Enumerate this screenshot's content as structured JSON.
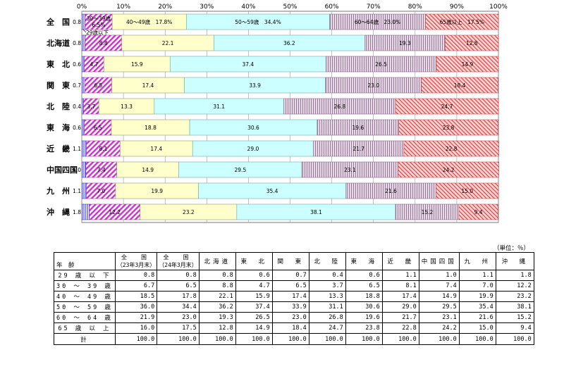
{
  "chart_data": {
    "type": "bar",
    "orientation": "horizontal-stacked-100",
    "x_ticks": [
      "0%",
      "10%",
      "20%",
      "30%",
      "40%",
      "50%",
      "60%",
      "70%",
      "80%",
      "90%",
      "100%"
    ],
    "xlim": [
      0,
      100
    ],
    "grid": true,
    "categories": [
      "全　国",
      "北海道",
      "東　北",
      "関　東",
      "北　陸",
      "東　海",
      "近　畿",
      "中国四国",
      "九　州",
      "沖　縄"
    ],
    "series": [
      {
        "name": "29歳以下",
        "color": "#7b7bff",
        "pattern": "vstripe",
        "values": [
          0.8,
          0.8,
          0.6,
          0.7,
          0.4,
          0.6,
          1.1,
          1.0,
          1.1,
          1.8
        ]
      },
      {
        "name": "30～39歳",
        "color": "#cc33cc",
        "pattern": "diag",
        "values": [
          6.5,
          8.8,
          4.7,
          6.5,
          3.7,
          6.5,
          8.1,
          7.4,
          7.0,
          12.2
        ]
      },
      {
        "name": "40～49歳",
        "color": "#ffffcc",
        "pattern": "solid",
        "values": [
          17.8,
          22.1,
          15.9,
          17.4,
          13.3,
          18.8,
          17.4,
          14.9,
          19.9,
          23.2
        ]
      },
      {
        "name": "50～59歳",
        "color": "#ccffff",
        "pattern": "solid",
        "values": [
          34.4,
          36.2,
          37.4,
          33.9,
          31.1,
          30.6,
          29.0,
          29.5,
          35.4,
          38.1
        ]
      },
      {
        "name": "60～64歳",
        "color": "#d6c2d6",
        "pattern": "vlines",
        "values": [
          23.0,
          19.3,
          26.5,
          23.0,
          26.8,
          19.6,
          21.7,
          23.1,
          21.6,
          15.2
        ]
      },
      {
        "name": "65歳以上",
        "color": "#ffcccc",
        "pattern": "redhatch",
        "values": [
          17.5,
          12.8,
          14.9,
          18.4,
          24.7,
          23.8,
          22.8,
          24.2,
          15.0,
          9.4
        ]
      }
    ],
    "bar_labels": [
      [
        "0.8",
        "30～39歳\n6.5%",
        "40～49歳　17.8%",
        "50～59歳　34.4%",
        "60～64歳　23.0%",
        "65歳以上　17.5%"
      ],
      [
        "0.8",
        "8.8",
        "22.1",
        "36.2",
        "19.3",
        "12.8"
      ],
      [
        "0.6",
        "4.7",
        "15.9",
        "37.4",
        "26.5",
        "14.9"
      ],
      [
        "0.7",
        "6.5",
        "17.4",
        "33.9",
        "23.0",
        "18.4"
      ],
      [
        "0.4",
        "3.7",
        "13.3",
        "31.1",
        "26.8",
        "24.7"
      ],
      [
        "0.6",
        "6.5",
        "18.8",
        "30.6",
        "19.6",
        "23.8"
      ],
      [
        "1.1",
        "8.1",
        "17.4",
        "29.0",
        "21.7",
        "22.8"
      ],
      [
        "1.0",
        "7.4",
        "14.9",
        "29.5",
        "23.1",
        "24.2"
      ],
      [
        "1.1",
        "7.0",
        "19.9",
        "35.4",
        "21.6",
        "15.0"
      ],
      [
        "1.8",
        "12.2",
        "23.2",
        "38.1",
        "15.2",
        "9.4"
      ]
    ],
    "annotation": "29歳以下"
  },
  "table": {
    "unit": "（単位：％）",
    "corner_label": "年　齢",
    "headers": [
      {
        "line1": "全　国",
        "line2": "（23年3月末）"
      },
      {
        "line1": "全　国",
        "line2": "（24年3月末）"
      },
      {
        "line1": "北海道",
        "line2": ""
      },
      {
        "line1": "東　北",
        "line2": ""
      },
      {
        "line1": "関　東",
        "line2": ""
      },
      {
        "line1": "北　陸",
        "line2": ""
      },
      {
        "line1": "東　海",
        "line2": ""
      },
      {
        "line1": "近　畿",
        "line2": ""
      },
      {
        "line1": "中国四国",
        "line2": ""
      },
      {
        "line1": "九　州",
        "line2": ""
      },
      {
        "line1": "沖　縄",
        "line2": ""
      }
    ],
    "rows": [
      {
        "label": "29 歳 以 下",
        "values": [
          "0.8",
          "0.8",
          "0.8",
          "0.6",
          "0.7",
          "0.4",
          "0.6",
          "1.1",
          "1.0",
          "1.1",
          "1.8"
        ]
      },
      {
        "label": "30 ～ 39 歳",
        "values": [
          "6.7",
          "6.5",
          "8.8",
          "4.7",
          "6.5",
          "3.7",
          "6.5",
          "8.1",
          "7.4",
          "7.0",
          "12.2"
        ]
      },
      {
        "label": "40 ～ 49 歳",
        "values": [
          "18.5",
          "17.8",
          "22.1",
          "15.9",
          "17.4",
          "13.3",
          "18.8",
          "17.4",
          "14.9",
          "19.9",
          "23.2"
        ]
      },
      {
        "label": "50 ～ 59 歳",
        "values": [
          "36.0",
          "34.4",
          "36.2",
          "37.4",
          "33.9",
          "31.1",
          "30.6",
          "29.0",
          "29.5",
          "35.4",
          "38.1"
        ]
      },
      {
        "label": "60 ～ 64 歳",
        "values": [
          "21.9",
          "23.0",
          "19.3",
          "26.5",
          "23.0",
          "26.8",
          "19.6",
          "21.7",
          "23.1",
          "21.6",
          "15.2"
        ]
      },
      {
        "label": "65 歳 以 上",
        "values": [
          "16.0",
          "17.5",
          "12.8",
          "14.9",
          "18.4",
          "24.7",
          "23.8",
          "22.8",
          "24.2",
          "15.0",
          "9.4"
        ]
      },
      {
        "label": "計",
        "values": [
          "100.0",
          "100.0",
          "100.0",
          "100.0",
          "100.0",
          "100.0",
          "100.0",
          "100.0",
          "100.0",
          "100.0",
          "100.0"
        ]
      }
    ]
  }
}
